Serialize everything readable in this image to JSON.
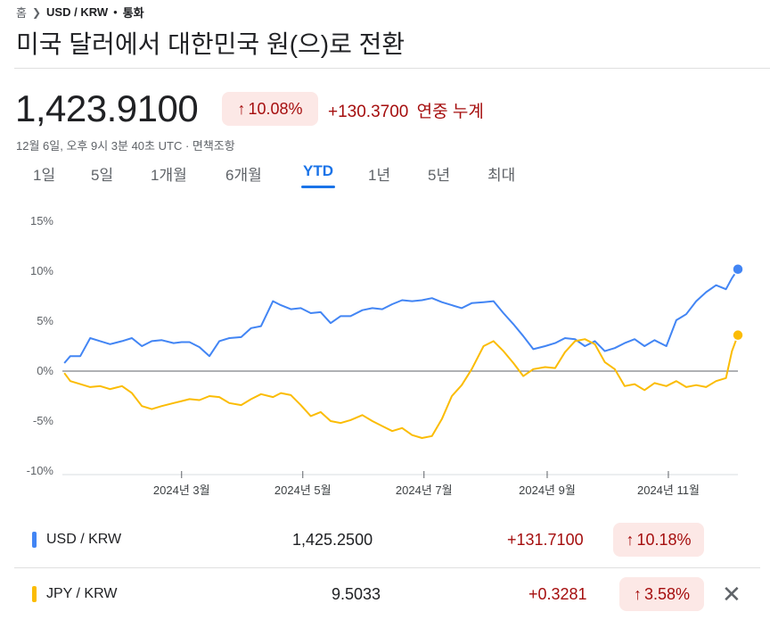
{
  "breadcrumb": {
    "home": "홈",
    "pair": "USD / KRW",
    "dot": "•",
    "category": "통화"
  },
  "title": "미국 달러에서 대한민국 원(으)로 전환",
  "quote": {
    "price": "1,423.9100",
    "pct": "10.08%",
    "change": "+130.3700",
    "change_label": "연중 누계",
    "timestamp": "12월 6일, 오후 9시 3분 40초 UTC · 면책조항"
  },
  "tabs": [
    "1일",
    "5일",
    "1개월",
    "6개월",
    "YTD",
    "1년",
    "5년",
    "최대"
  ],
  "active_tab": "YTD",
  "colors": {
    "accent": "#1a73e8",
    "usd": "#4285f4",
    "jpy": "#fbbc04",
    "down_text": "#a50e0e",
    "pill": "#fce8e6"
  },
  "chart_data": {
    "type": "line",
    "y_unit": "%",
    "ylim": [
      -10,
      15
    ],
    "yticks": [
      "15%",
      "10%",
      "5%",
      "0%",
      "-5%",
      "-10%"
    ],
    "ytick_values": [
      15,
      10,
      5,
      0,
      -5,
      -10
    ],
    "xtick_labels": [
      "2024년 3월",
      "2024년 5월",
      "2024년 7월",
      "2024년 9월",
      "2024년 11월"
    ],
    "xtick_values": [
      "2024-03-01",
      "2024-05-01",
      "2024-07-01",
      "2024-09-01",
      "2024-11-01"
    ],
    "x_range": [
      "2024-01-01",
      "2024-12-06"
    ],
    "grid": "horizontal",
    "series": [
      {
        "name": "USD / KRW",
        "color": "#4285f4",
        "x": [
          "2024-01-02",
          "2024-01-05",
          "2024-01-10",
          "2024-01-15",
          "2024-01-20",
          "2024-01-25",
          "2024-01-31",
          "2024-02-05",
          "2024-02-10",
          "2024-02-15",
          "2024-02-20",
          "2024-02-26",
          "2024-03-01",
          "2024-03-05",
          "2024-03-10",
          "2024-03-15",
          "2024-03-20",
          "2024-03-25",
          "2024-03-31",
          "2024-04-05",
          "2024-04-10",
          "2024-04-16",
          "2024-04-20",
          "2024-04-25",
          "2024-04-30",
          "2024-05-05",
          "2024-05-10",
          "2024-05-15",
          "2024-05-20",
          "2024-05-25",
          "2024-05-31",
          "2024-06-05",
          "2024-06-10",
          "2024-06-15",
          "2024-06-20",
          "2024-06-25",
          "2024-06-30",
          "2024-07-05",
          "2024-07-10",
          "2024-07-15",
          "2024-07-20",
          "2024-07-25",
          "2024-07-31",
          "2024-08-05",
          "2024-08-10",
          "2024-08-15",
          "2024-08-20",
          "2024-08-25",
          "2024-08-31",
          "2024-09-05",
          "2024-09-10",
          "2024-09-15",
          "2024-09-20",
          "2024-09-25",
          "2024-09-30",
          "2024-10-05",
          "2024-10-10",
          "2024-10-15",
          "2024-10-20",
          "2024-10-25",
          "2024-10-31",
          "2024-11-05",
          "2024-11-10",
          "2024-11-15",
          "2024-11-20",
          "2024-11-25",
          "2024-11-30",
          "2024-12-03",
          "2024-12-06"
        ],
        "values": [
          0.8,
          1.5,
          1.5,
          3.3,
          3.0,
          2.7,
          3.0,
          3.3,
          2.5,
          3.0,
          3.1,
          2.8,
          2.9,
          2.9,
          2.4,
          1.5,
          3.0,
          3.3,
          3.4,
          4.3,
          4.5,
          7.0,
          6.6,
          6.2,
          6.3,
          5.8,
          5.9,
          4.8,
          5.5,
          5.5,
          6.1,
          6.3,
          6.2,
          6.7,
          7.1,
          7.0,
          7.1,
          7.3,
          6.9,
          6.6,
          6.3,
          6.8,
          6.9,
          7.0,
          5.8,
          4.7,
          3.5,
          2.2,
          2.5,
          2.8,
          3.3,
          3.2,
          2.5,
          3.0,
          2.0,
          2.3,
          2.8,
          3.2,
          2.5,
          3.1,
          2.5,
          5.1,
          5.7,
          7.0,
          7.9,
          8.6,
          8.2,
          9.3,
          10.2
        ]
      },
      {
        "name": "JPY / KRW",
        "color": "#fbbc04",
        "x": [
          "2024-01-02",
          "2024-01-05",
          "2024-01-10",
          "2024-01-15",
          "2024-01-20",
          "2024-01-25",
          "2024-01-31",
          "2024-02-05",
          "2024-02-10",
          "2024-02-15",
          "2024-02-20",
          "2024-02-26",
          "2024-03-01",
          "2024-03-05",
          "2024-03-10",
          "2024-03-15",
          "2024-03-20",
          "2024-03-25",
          "2024-03-31",
          "2024-04-05",
          "2024-04-10",
          "2024-04-16",
          "2024-04-20",
          "2024-04-25",
          "2024-04-30",
          "2024-05-05",
          "2024-05-10",
          "2024-05-15",
          "2024-05-20",
          "2024-05-25",
          "2024-05-31",
          "2024-06-05",
          "2024-06-10",
          "2024-06-15",
          "2024-06-20",
          "2024-06-25",
          "2024-06-30",
          "2024-07-05",
          "2024-07-10",
          "2024-07-15",
          "2024-07-20",
          "2024-07-25",
          "2024-07-31",
          "2024-08-05",
          "2024-08-10",
          "2024-08-15",
          "2024-08-20",
          "2024-08-25",
          "2024-08-31",
          "2024-09-05",
          "2024-09-10",
          "2024-09-15",
          "2024-09-20",
          "2024-09-25",
          "2024-09-30",
          "2024-10-05",
          "2024-10-10",
          "2024-10-15",
          "2024-10-20",
          "2024-10-25",
          "2024-10-31",
          "2024-11-05",
          "2024-11-10",
          "2024-11-15",
          "2024-11-20",
          "2024-11-25",
          "2024-11-30",
          "2024-12-03",
          "2024-12-06"
        ],
        "values": [
          -0.2,
          -1.0,
          -1.3,
          -1.6,
          -1.5,
          -1.8,
          -1.5,
          -2.2,
          -3.5,
          -3.8,
          -3.5,
          -3.2,
          -3.0,
          -2.8,
          -2.9,
          -2.5,
          -2.6,
          -3.2,
          -3.4,
          -2.8,
          -2.3,
          -2.6,
          -2.2,
          -2.4,
          -3.4,
          -4.5,
          -4.1,
          -5.0,
          -5.2,
          -4.9,
          -4.4,
          -5.0,
          -5.5,
          -6.0,
          -5.7,
          -6.4,
          -6.7,
          -6.5,
          -4.8,
          -2.5,
          -1.4,
          0.2,
          2.5,
          3.0,
          2.0,
          0.8,
          -0.5,
          0.2,
          0.4,
          0.3,
          1.9,
          3.0,
          3.2,
          2.7,
          0.9,
          0.2,
          -1.5,
          -1.3,
          -1.9,
          -1.2,
          -1.5,
          -1.0,
          -1.6,
          -1.4,
          -1.6,
          -1.0,
          -0.7,
          2.0,
          3.6
        ]
      }
    ]
  },
  "table": {
    "rows": [
      {
        "pair": "USD / KRW",
        "value": "1,425.2500",
        "change": "+131.7100",
        "pct": "10.18%",
        "color": "#4285f4"
      },
      {
        "pair": "JPY / KRW",
        "value": "9.5033",
        "change": "+0.3281",
        "pct": "3.58%",
        "color": "#fbbc04"
      }
    ],
    "close_glyph": "✕"
  },
  "icons": {
    "chevron": "chevron-right-icon",
    "up_arrow": "arrow-up-icon",
    "remove": "close-icon"
  }
}
